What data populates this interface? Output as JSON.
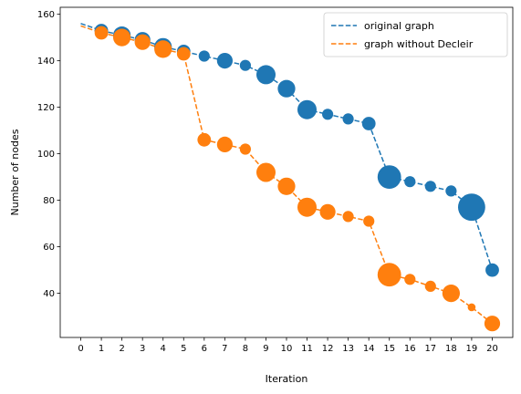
{
  "chart_data": {
    "type": "scatter",
    "title": "",
    "xlabel": "Iteration",
    "ylabel": "Number of nodes",
    "xlim": [
      -1,
      21
    ],
    "ylim": [
      21,
      163
    ],
    "xticks": [
      0,
      1,
      2,
      3,
      4,
      5,
      6,
      7,
      8,
      9,
      10,
      11,
      12,
      13,
      14,
      15,
      16,
      17,
      18,
      19,
      20
    ],
    "yticks": [
      40,
      60,
      80,
      100,
      120,
      140,
      160
    ],
    "grid": false,
    "legend_position": "top-right",
    "x": [
      0,
      1,
      2,
      3,
      4,
      5,
      6,
      7,
      8,
      9,
      10,
      11,
      12,
      13,
      14,
      15,
      16,
      17,
      18,
      19,
      20
    ],
    "series": [
      {
        "name": "original graph",
        "color": "#1f77b4",
        "line_style": "dashed",
        "line_points": [
          [
            0,
            156
          ],
          [
            1,
            153
          ],
          [
            2,
            151
          ],
          [
            3,
            149
          ],
          [
            4,
            146
          ],
          [
            5,
            144
          ],
          [
            6,
            142
          ],
          [
            7,
            140
          ],
          [
            8,
            138
          ],
          [
            9,
            134
          ],
          [
            10,
            128
          ],
          [
            11,
            119
          ],
          [
            12,
            117
          ],
          [
            13,
            115
          ],
          [
            14,
            113
          ],
          [
            15,
            90
          ],
          [
            16,
            88
          ],
          [
            17,
            86
          ],
          [
            18,
            84
          ],
          [
            19,
            77
          ],
          [
            20,
            50
          ]
        ],
        "points": [
          {
            "x": 1,
            "y": 153,
            "size": 3
          },
          {
            "x": 2,
            "y": 151,
            "size": 5
          },
          {
            "x": 3,
            "y": 149,
            "size": 4
          },
          {
            "x": 4,
            "y": 146,
            "size": 5
          },
          {
            "x": 5,
            "y": 144,
            "size": 3
          },
          {
            "x": 6,
            "y": 142,
            "size": 2
          },
          {
            "x": 7,
            "y": 140,
            "size": 4
          },
          {
            "x": 8,
            "y": 138,
            "size": 2
          },
          {
            "x": 9,
            "y": 134,
            "size": 6
          },
          {
            "x": 10,
            "y": 128,
            "size": 5
          },
          {
            "x": 11,
            "y": 119,
            "size": 6
          },
          {
            "x": 12,
            "y": 117,
            "size": 2
          },
          {
            "x": 13,
            "y": 115,
            "size": 2
          },
          {
            "x": 14,
            "y": 113,
            "size": 3
          },
          {
            "x": 15,
            "y": 90,
            "size": 9
          },
          {
            "x": 16,
            "y": 88,
            "size": 2
          },
          {
            "x": 17,
            "y": 86,
            "size": 2
          },
          {
            "x": 18,
            "y": 84,
            "size": 2
          },
          {
            "x": 19,
            "y": 77,
            "size": 12
          },
          {
            "x": 20,
            "y": 50,
            "size": 3
          }
        ]
      },
      {
        "name": "graph without Decleir",
        "color": "#ff7f0e",
        "line_style": "dashed",
        "line_points": [
          [
            0,
            155
          ],
          [
            1,
            152
          ],
          [
            2,
            150
          ],
          [
            3,
            148
          ],
          [
            4,
            145
          ],
          [
            5,
            143
          ],
          [
            6,
            106
          ],
          [
            7,
            104
          ],
          [
            8,
            102
          ],
          [
            9,
            92
          ],
          [
            10,
            86
          ],
          [
            11,
            77
          ],
          [
            12,
            75
          ],
          [
            13,
            73
          ],
          [
            14,
            71
          ],
          [
            15,
            48
          ],
          [
            16,
            46
          ],
          [
            17,
            43
          ],
          [
            18,
            40
          ],
          [
            19,
            34
          ],
          [
            20,
            27
          ]
        ],
        "points": [
          {
            "x": 1,
            "y": 152,
            "size": 3
          },
          {
            "x": 2,
            "y": 150,
            "size": 5
          },
          {
            "x": 3,
            "y": 148,
            "size": 4
          },
          {
            "x": 4,
            "y": 145,
            "size": 5
          },
          {
            "x": 5,
            "y": 143,
            "size": 3
          },
          {
            "x": 6,
            "y": 106,
            "size": 3
          },
          {
            "x": 7,
            "y": 104,
            "size": 4
          },
          {
            "x": 8,
            "y": 102,
            "size": 2
          },
          {
            "x": 9,
            "y": 92,
            "size": 6
          },
          {
            "x": 10,
            "y": 86,
            "size": 5
          },
          {
            "x": 11,
            "y": 77,
            "size": 6
          },
          {
            "x": 12,
            "y": 75,
            "size": 4
          },
          {
            "x": 13,
            "y": 73,
            "size": 2
          },
          {
            "x": 14,
            "y": 71,
            "size": 2
          },
          {
            "x": 15,
            "y": 48,
            "size": 9
          },
          {
            "x": 16,
            "y": 46,
            "size": 2
          },
          {
            "x": 17,
            "y": 43,
            "size": 2
          },
          {
            "x": 18,
            "y": 40,
            "size": 5
          },
          {
            "x": 19,
            "y": 34,
            "size": 1
          },
          {
            "x": 20,
            "y": 27,
            "size": 4
          }
        ]
      }
    ]
  }
}
